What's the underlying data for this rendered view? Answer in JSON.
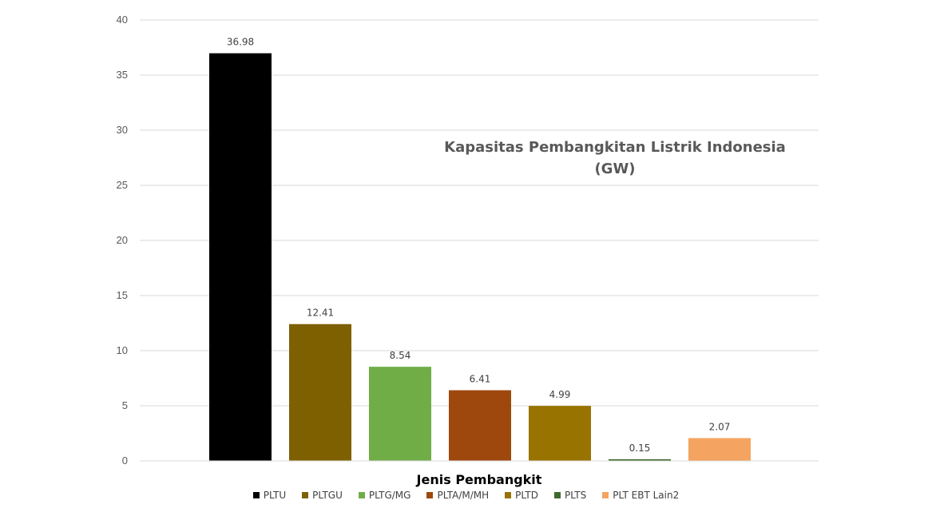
{
  "chart_data": {
    "type": "bar",
    "title_lines": [
      "Kapasitas Pembangkitan Listrik Indonesia",
      "(GW)"
    ],
    "xlabel": "Jenis Pembangkit",
    "ylabel": "",
    "ylim": [
      0,
      40
    ],
    "yticks": [
      0,
      5,
      10,
      15,
      20,
      25,
      30,
      35,
      40
    ],
    "grid": true,
    "legend_position": "bottom",
    "categories": [
      "PLTU",
      "PLTGU",
      "PLTG/MG",
      "PLTA/M/MH",
      "PLTD",
      "PLTS",
      "PLT EBT Lain2"
    ],
    "values": [
      36.98,
      12.41,
      8.54,
      6.41,
      4.99,
      0.15,
      2.07
    ],
    "value_labels": [
      "36.98",
      "12.41",
      "8.54",
      "6.41",
      "4.99",
      "0.15",
      "2.07"
    ],
    "colors": [
      "#000000",
      "#7f6000",
      "#70ad47",
      "#9e480e",
      "#997300",
      "#3d6b2c",
      "#f4a460"
    ]
  }
}
